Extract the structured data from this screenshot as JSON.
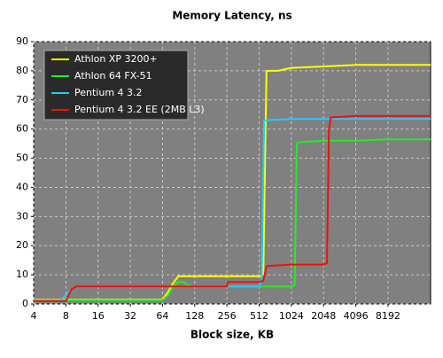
{
  "chart_data": {
    "type": "line",
    "title": "Memory Latency, ns",
    "x_label": "Block size, KB",
    "x_scale": "log2",
    "xlim": [
      4,
      20480
    ],
    "xticks": [
      4,
      8,
      16,
      32,
      64,
      128,
      256,
      512,
      1024,
      2048,
      4096,
      8192
    ],
    "ylim": [
      0,
      90
    ],
    "yticks": [
      0,
      10,
      20,
      30,
      40,
      50,
      60,
      70,
      80,
      90
    ],
    "grid": true,
    "legend": "top-left",
    "series": [
      {
        "name": "Athlon XP 3200+",
        "color": "#ffff00",
        "x": [
          4,
          8,
          16,
          32,
          64,
          72,
          80,
          90,
          128,
          256,
          512,
          560,
          600,
          640,
          768,
          1024,
          2048,
          4096,
          8192,
          16384,
          20480
        ],
        "values": [
          1.5,
          1.5,
          1.5,
          1.5,
          1.5,
          4,
          7,
          9.5,
          9.5,
          9.5,
          9.5,
          10,
          80,
          80,
          80,
          81,
          81.5,
          82,
          82,
          82,
          82
        ]
      },
      {
        "name": "Athlon 64 FX-51",
        "color": "#22ee22",
        "x": [
          4,
          8,
          16,
          32,
          64,
          72,
          80,
          90,
          100,
          110,
          128,
          256,
          512,
          1024,
          1100,
          1150,
          1200,
          2048,
          4096,
          8192,
          16384,
          20480
        ],
        "values": [
          1.3,
          1.3,
          1.3,
          1.3,
          1.3,
          3,
          6,
          7.5,
          7.5,
          6.5,
          6,
          6,
          6,
          6,
          6.5,
          55,
          55.5,
          56,
          56,
          56.5,
          56.5,
          56.5
        ]
      },
      {
        "name": "Pentium 4 3.2",
        "color": "#22ccff",
        "x": [
          4,
          6,
          7,
          8,
          9,
          10,
          16,
          32,
          64,
          128,
          256,
          512,
          540,
          570,
          600,
          1024,
          2048,
          4096,
          8192,
          16384,
          20480
        ],
        "values": [
          1,
          1,
          1,
          3,
          5,
          6,
          6,
          6,
          6,
          6,
          6,
          6,
          8,
          63,
          63,
          63.5,
          63.5,
          63.5,
          63.5,
          63.5,
          63.5
        ]
      },
      {
        "name": "Pentium 4 3.2 EE (2MB L3)",
        "color": "#ee1111",
        "x": [
          4,
          6,
          7,
          8,
          9,
          10,
          16,
          32,
          64,
          128,
          256,
          260,
          512,
          560,
          600,
          1024,
          2048,
          2200,
          2300,
          2400,
          4096,
          8192,
          16384,
          20480
        ],
        "values": [
          1,
          1,
          1,
          1,
          5,
          6,
          6,
          6,
          6,
          6,
          6,
          7.5,
          7.5,
          8,
          13,
          13.5,
          13.5,
          14,
          60,
          64,
          64.5,
          64.5,
          64.5,
          64.5
        ]
      }
    ]
  }
}
